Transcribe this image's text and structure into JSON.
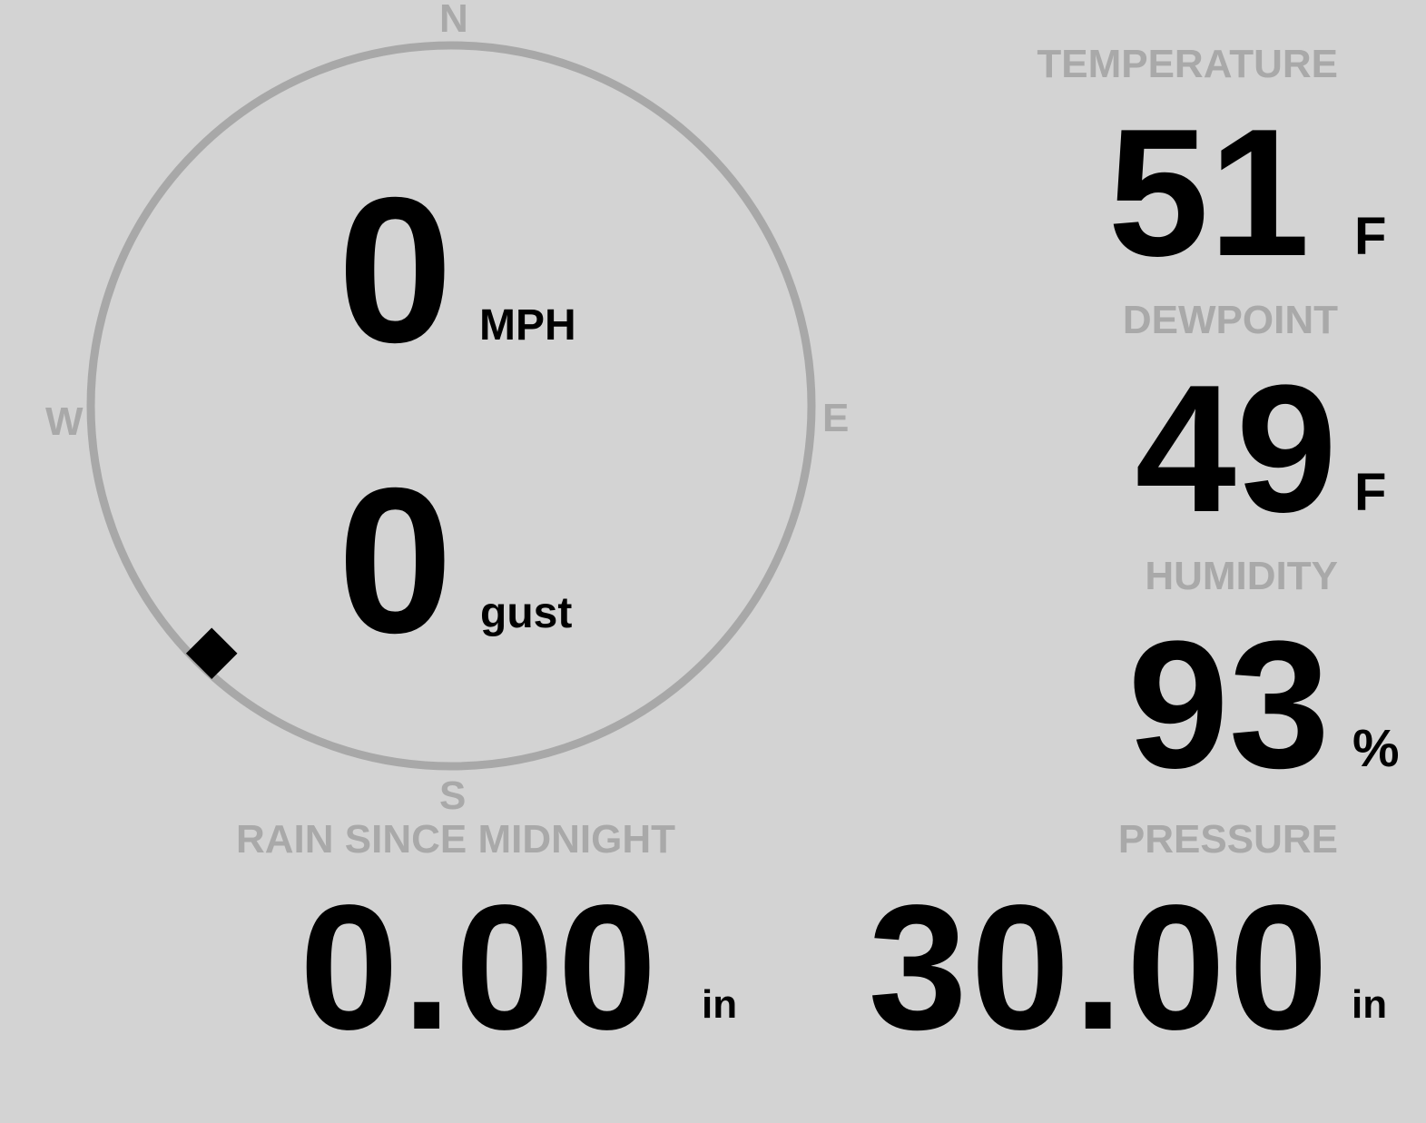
{
  "wind": {
    "compass": {
      "north": "N",
      "east": "E",
      "south": "S",
      "west": "W"
    },
    "direction_degrees": 225,
    "speed": "0",
    "speed_unit": "MPH",
    "gust": "0",
    "gust_unit": "gust"
  },
  "temperature": {
    "label": "TEMPERATURE",
    "value": "51",
    "unit": "F"
  },
  "dewpoint": {
    "label": "DEWPOINT",
    "value": "49",
    "unit": "F"
  },
  "humidity": {
    "label": "HUMIDITY",
    "value": "93",
    "unit": "%"
  },
  "rain": {
    "label": "RAIN SINCE MIDNIGHT",
    "value": "0.00",
    "unit": "in"
  },
  "pressure": {
    "label": "PRESSURE",
    "value": "30.00",
    "unit": "in"
  },
  "colors": {
    "background": "#d3d3d3",
    "label": "#a9a9a9",
    "value": "#000000",
    "ring": "#a8a8a8"
  }
}
